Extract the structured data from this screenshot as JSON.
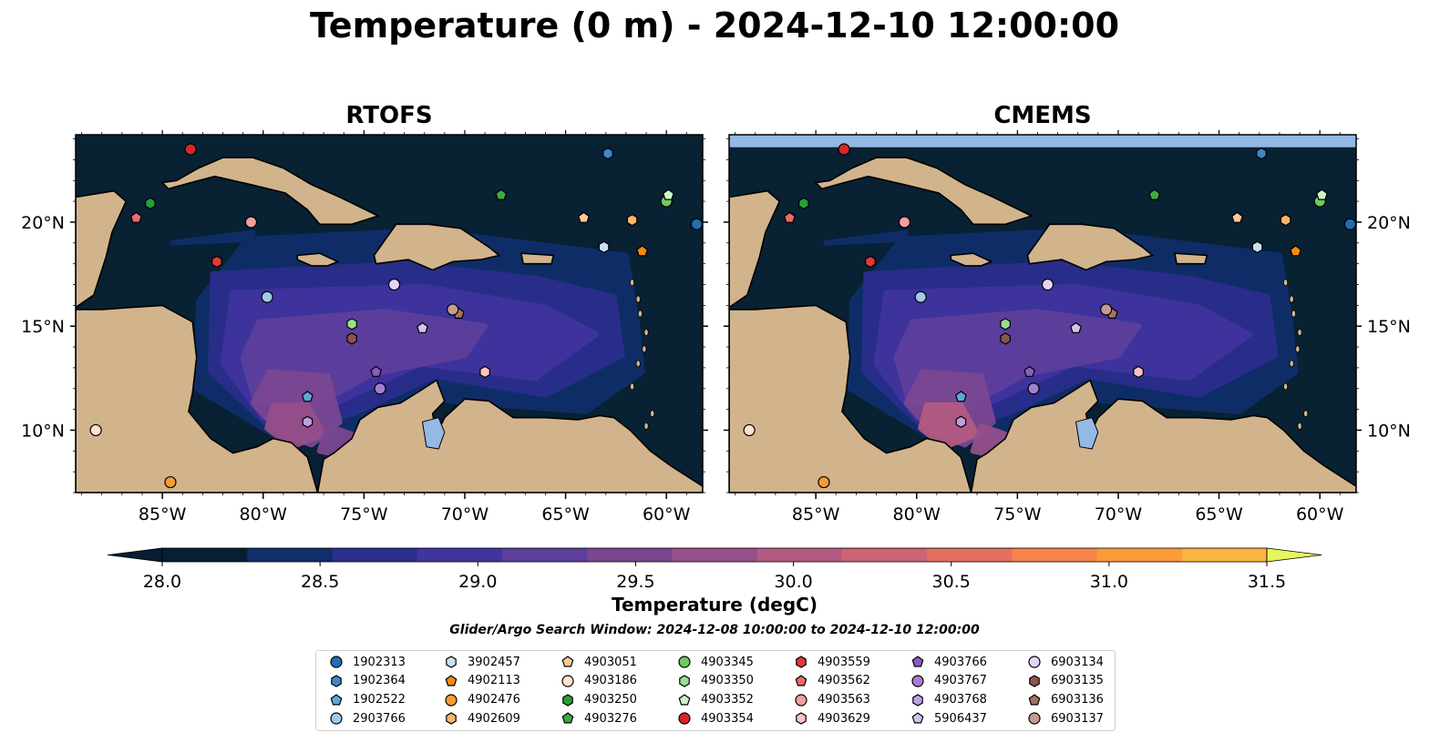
{
  "title": "Temperature (0 m) - 2024-12-10 12:00:00",
  "panels": [
    {
      "name": "rtofs",
      "title": "RTOFS"
    },
    {
      "name": "cmems",
      "title": "CMEMS"
    }
  ],
  "map_extent": {
    "lon": [
      -89.3,
      -58.2
    ],
    "lat": [
      7.0,
      24.2
    ]
  },
  "axes": {
    "x_ticks": [
      -85,
      -80,
      -75,
      -70,
      -65,
      -60
    ],
    "x_tick_labels": [
      "85°W",
      "80°W",
      "75°W",
      "70°W",
      "65°W",
      "60°W"
    ],
    "y_ticks": [
      10,
      15,
      20
    ],
    "y_tick_labels": [
      "10°N",
      "15°N",
      "20°N"
    ]
  },
  "colorbar": {
    "label": "Temperature (degC)",
    "min": 28.0,
    "max": 31.5,
    "step": 0.25,
    "tick_values": [
      28.0,
      28.5,
      29.0,
      29.5,
      30.0,
      30.5,
      31.0,
      31.5
    ],
    "tick_labels": [
      "28.0",
      "28.5",
      "29.0",
      "29.5",
      "30.0",
      "30.5",
      "31.0",
      "31.5"
    ],
    "colors": [
      "#071e33",
      "#0f2e6a",
      "#2b2e8c",
      "#40349e",
      "#5d3f9b",
      "#7a4792",
      "#954f8a",
      "#b25a82",
      "#cc6476",
      "#e2705f",
      "#f4844a",
      "#fb9b3a",
      "#f9b53f",
      "#f3d14a",
      "#e7f75b"
    ]
  },
  "colors": {
    "land": "#d2b48c",
    "ocean_dark": "#082133",
    "lake": "#94b9e5"
  },
  "search_window": "Glider/Argo Search Window: 2024-12-08 10:00:00 to 2024-12-10 12:00:00",
  "platforms": [
    {
      "id": "1902313",
      "marker": "circle",
      "color": "#1f6eb4",
      "lon": -58.5,
      "lat": 19.9
    },
    {
      "id": "1902364",
      "marker": "hexagon",
      "color": "#3f86c8",
      "lon": -62.9,
      "lat": 23.3
    },
    {
      "id": "1902522",
      "marker": "pentagon",
      "color": "#5aa9dc",
      "lon": -77.8,
      "lat": 11.6
    },
    {
      "id": "2903766",
      "marker": "circle",
      "color": "#9fcbe8",
      "lon": -79.8,
      "lat": 16.4
    },
    {
      "id": "3902457",
      "marker": "hexagon",
      "color": "#c8e2f4",
      "lon": -63.1,
      "lat": 18.8
    },
    {
      "id": "4902113",
      "marker": "pentagon",
      "color": "#f28a12",
      "lon": -61.2,
      "lat": 18.6
    },
    {
      "id": "4902476",
      "marker": "circle",
      "color": "#f59a35",
      "lon": -84.6,
      "lat": 7.5
    },
    {
      "id": "4902609",
      "marker": "hexagon",
      "color": "#fbb26e",
      "lon": -61.7,
      "lat": 20.1
    },
    {
      "id": "4903051",
      "marker": "pentagon",
      "color": "#fcc99a",
      "lon": -64.1,
      "lat": 20.2
    },
    {
      "id": "4903186",
      "marker": "circle",
      "color": "#fde3cc",
      "lon": -88.3,
      "lat": 10.0
    },
    {
      "id": "4903250",
      "marker": "hexagon",
      "color": "#2a9d3c",
      "lon": -85.6,
      "lat": 20.9
    },
    {
      "id": "4903276",
      "marker": "pentagon",
      "color": "#3cab3f",
      "lon": -68.2,
      "lat": 21.3
    },
    {
      "id": "4903345",
      "marker": "circle",
      "color": "#6ccb5f",
      "lon": -60.0,
      "lat": 21.0
    },
    {
      "id": "4903350",
      "marker": "hexagon",
      "color": "#98e08f",
      "lon": -75.6,
      "lat": 15.1
    },
    {
      "id": "4903352",
      "marker": "pentagon",
      "color": "#ccf5c4",
      "lon": -59.9,
      "lat": 21.3
    },
    {
      "id": "4903354",
      "marker": "circle",
      "color": "#d62728",
      "lon": -83.6,
      "lat": 23.5
    },
    {
      "id": "4903559",
      "marker": "hexagon",
      "color": "#e23a3a",
      "lon": -82.3,
      "lat": 18.1
    },
    {
      "id": "4903562",
      "marker": "pentagon",
      "color": "#ee6a6a",
      "lon": -86.3,
      "lat": 20.2
    },
    {
      "id": "4903563",
      "marker": "circle",
      "color": "#f59e9e",
      "lon": -80.6,
      "lat": 20.0
    },
    {
      "id": "4903629",
      "marker": "hexagon",
      "color": "#fbc4c4",
      "lon": -69.0,
      "lat": 12.8
    },
    {
      "id": "4903766",
      "marker": "pentagon",
      "color": "#8b5cc1",
      "lon": -74.4,
      "lat": 12.8
    },
    {
      "id": "4903767",
      "marker": "circle",
      "color": "#a47ed3",
      "lon": -74.2,
      "lat": 12.0
    },
    {
      "id": "4903768",
      "marker": "hexagon",
      "color": "#bca0e2",
      "lon": -77.8,
      "lat": 10.4
    },
    {
      "id": "5906437",
      "marker": "pentagon",
      "color": "#d3c2f0",
      "lon": -72.1,
      "lat": 14.9
    },
    {
      "id": "6903134",
      "marker": "circle",
      "color": "#e6d4f6",
      "lon": -73.5,
      "lat": 17.0
    },
    {
      "id": "6903135",
      "marker": "hexagon",
      "color": "#8c564b",
      "lon": -75.6,
      "lat": 14.4
    },
    {
      "id": "6903136",
      "marker": "pentagon",
      "color": "#a8705f",
      "lon": -70.3,
      "lat": 15.6
    },
    {
      "id": "6903137",
      "marker": "circle",
      "color": "#c49c94",
      "lon": -70.6,
      "lat": 15.8
    }
  ]
}
